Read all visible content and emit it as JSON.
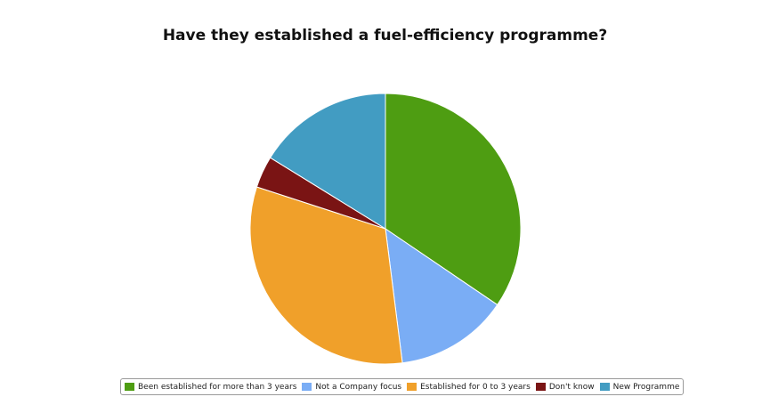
{
  "chart_data": {
    "type": "pie",
    "title": "Have they established a fuel-efficiency programme?",
    "legend_position": "bottom",
    "slices": [
      {
        "label": "Been established for more than 3 years",
        "value": 34.5,
        "color": "#4e9d12"
      },
      {
        "label": "Not a Company focus",
        "value": 13.5,
        "color": "#7aadf5"
      },
      {
        "label": "Established for 0 to 3 years",
        "value": 32.0,
        "color": "#f0a02a"
      },
      {
        "label": "Don't know",
        "value": 3.8,
        "color": "#7a1414"
      },
      {
        "label": "New Programme",
        "value": 16.2,
        "color": "#429cc2"
      }
    ]
  }
}
